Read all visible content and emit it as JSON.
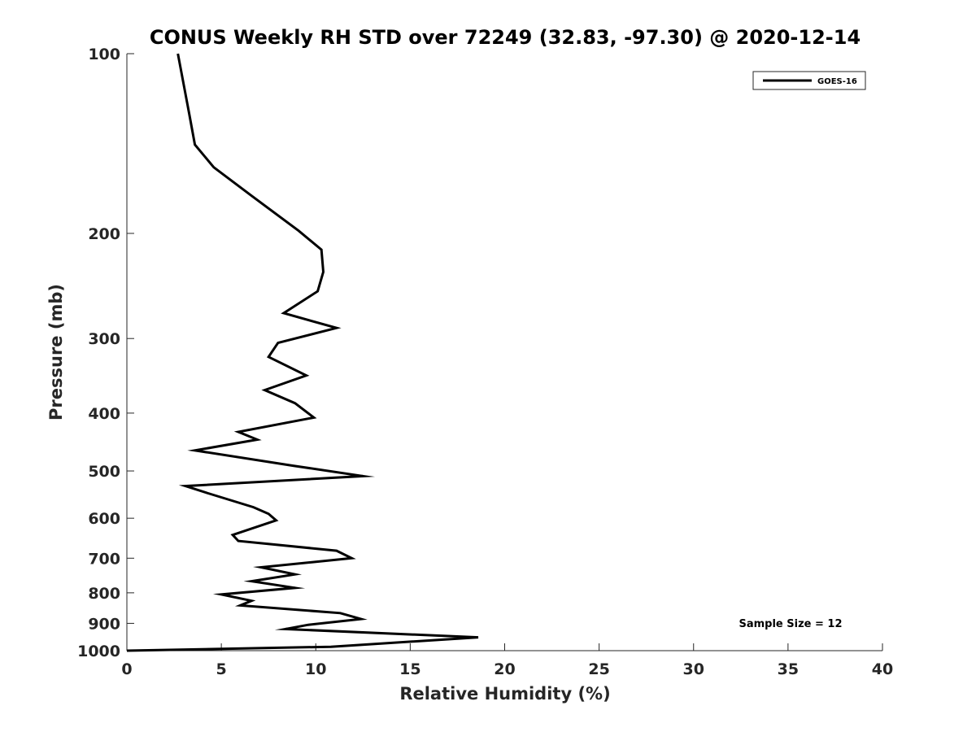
{
  "chart_data": {
    "type": "line",
    "title": "CONUS Weekly RH STD over 72249 (32.83, -97.30) @ 2020-12-14",
    "xlabel": "Relative Humidity (%)",
    "ylabel": "Pressure (mb)",
    "xlim": [
      0,
      40
    ],
    "ylim": [
      100,
      1000
    ],
    "y_scale": "log",
    "y_reversed": true,
    "x_ticks": [
      0,
      5,
      10,
      15,
      20,
      25,
      30,
      35,
      40
    ],
    "y_ticks": [
      100,
      200,
      300,
      400,
      500,
      600,
      700,
      800,
      900,
      1000
    ],
    "grid": false,
    "legend_position": "top-right",
    "annotation": "Sample Size = 12",
    "series": [
      {
        "name": "GOES-16",
        "color": "#000000",
        "points": [
          [
            0.0,
            1000
          ],
          [
            10.8,
            985
          ],
          [
            18.6,
            950
          ],
          [
            8.4,
            920
          ],
          [
            9.6,
            905
          ],
          [
            12.4,
            885
          ],
          [
            11.3,
            865
          ],
          [
            6.0,
            840
          ],
          [
            6.6,
            825
          ],
          [
            5.0,
            805
          ],
          [
            8.9,
            785
          ],
          [
            6.6,
            765
          ],
          [
            8.9,
            745
          ],
          [
            7.1,
            725
          ],
          [
            11.9,
            700
          ],
          [
            11.1,
            680
          ],
          [
            5.9,
            655
          ],
          [
            5.6,
            640
          ],
          [
            7.9,
            605
          ],
          [
            7.5,
            590
          ],
          [
            6.7,
            575
          ],
          [
            4.3,
            545
          ],
          [
            3.1,
            530
          ],
          [
            12.5,
            510
          ],
          [
            8.8,
            490
          ],
          [
            3.6,
            462
          ],
          [
            6.9,
            443
          ],
          [
            5.9,
            430
          ],
          [
            9.9,
            407
          ],
          [
            8.9,
            385
          ],
          [
            7.3,
            366
          ],
          [
            9.5,
            346
          ],
          [
            7.5,
            322
          ],
          [
            8.0,
            305
          ],
          [
            11.1,
            288
          ],
          [
            8.3,
            272
          ],
          [
            10.1,
            250
          ],
          [
            10.4,
            232
          ],
          [
            10.3,
            213
          ],
          [
            9.1,
            198
          ],
          [
            6.6,
            173
          ],
          [
            4.6,
            155
          ],
          [
            3.6,
            142
          ],
          [
            3.3,
            126
          ],
          [
            2.7,
            100
          ]
        ]
      }
    ]
  }
}
